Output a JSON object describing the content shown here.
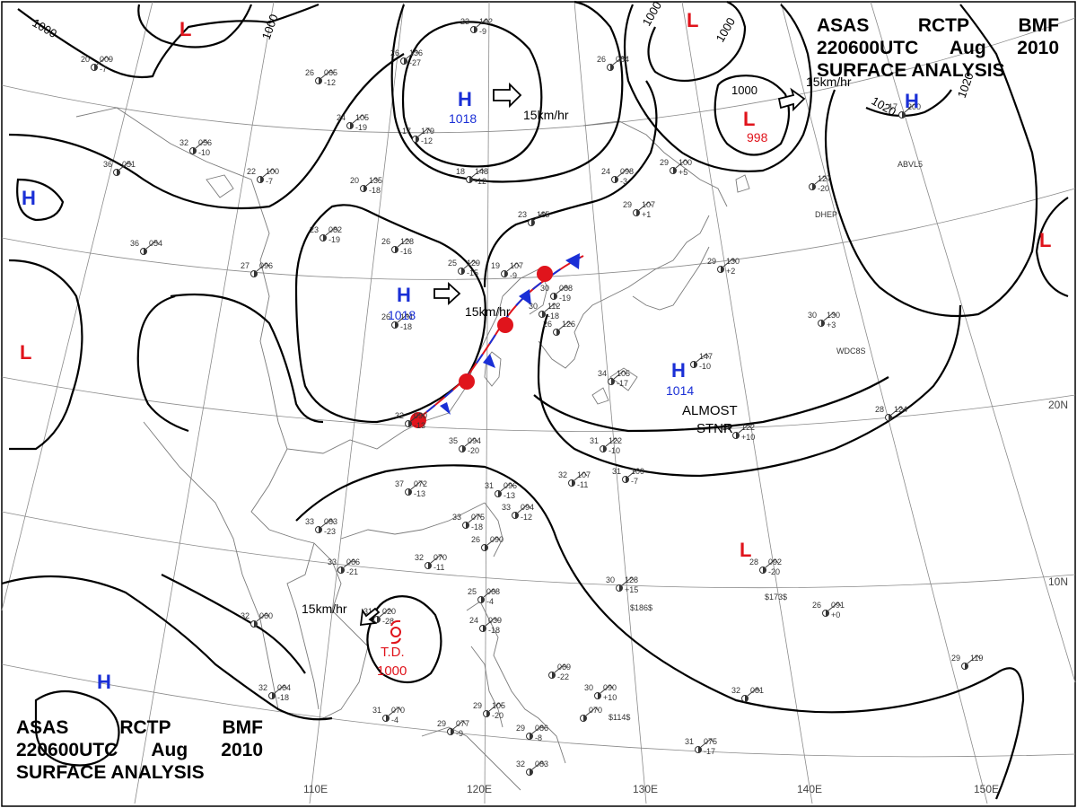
{
  "title": {
    "line1": [
      "ASAS",
      "RCTP",
      "BMF"
    ],
    "line2": [
      "220600UTC",
      "Aug",
      "2010"
    ],
    "line3": "SURFACE ANALYSIS"
  },
  "colors": {
    "high": "#1a2fd6",
    "low": "#e0141c",
    "isobar": "#000000",
    "grid": "#8a8a8a",
    "coast": "#7a7a7a"
  },
  "longitude_labels": [
    "110E",
    "120E",
    "130E",
    "140E",
    "150E"
  ],
  "latitude_labels": [
    "20N",
    "10N"
  ],
  "pressure_centers": [
    {
      "type": "H",
      "value": "1018"
    },
    {
      "type": "H",
      "value": "1018"
    },
    {
      "type": "H",
      "value": "1014"
    },
    {
      "type": "H",
      "value": ""
    },
    {
      "type": "H",
      "value": ""
    },
    {
      "type": "H",
      "value": ""
    },
    {
      "type": "L",
      "value": "998"
    },
    {
      "type": "L",
      "value": ""
    },
    {
      "type": "L",
      "value": ""
    },
    {
      "type": "L",
      "value": ""
    },
    {
      "type": "L",
      "value": ""
    },
    {
      "type": "L",
      "value": ""
    }
  ],
  "tropical_depression": {
    "label": "T.D.",
    "value": "1000"
  },
  "movement_labels": [
    "15km/hr",
    "15km/hr",
    "15km/hr",
    "15km/hr"
  ],
  "annotations": {
    "stationary_line1": "ALMOST",
    "stationary_line2": "STNR"
  },
  "isobar_labels": [
    "1000",
    "1000",
    "1000",
    "1000",
    "1000",
    "1020",
    "1020"
  ],
  "station_plots": [
    {
      "temp": "20",
      "pres": "009",
      "extra": "-7"
    },
    {
      "temp": "32",
      "pres": "056",
      "extra": "-10"
    },
    {
      "temp": "36",
      "pres": "051",
      "extra": ""
    },
    {
      "temp": "26",
      "pres": "065",
      "extra": "-12"
    },
    {
      "temp": "24",
      "pres": "105",
      "extra": "-19"
    },
    {
      "temp": "22",
      "pres": "100",
      "extra": "-7"
    },
    {
      "temp": "36",
      "pres": "054",
      "extra": ""
    },
    {
      "temp": "27",
      "pres": "096",
      "extra": ""
    },
    {
      "temp": "23",
      "pres": "082",
      "extra": "-19"
    },
    {
      "temp": "20",
      "pres": "135",
      "extra": "-18"
    },
    {
      "temp": "17",
      "pres": "179",
      "extra": "-12"
    },
    {
      "temp": "23",
      "pres": "162",
      "extra": "-9"
    },
    {
      "temp": "26",
      "pres": "136",
      "extra": "-27"
    },
    {
      "temp": "18",
      "pres": "148",
      "extra": "-12"
    },
    {
      "temp": "26",
      "pres": "128",
      "extra": "-16"
    },
    {
      "temp": "25",
      "pres": "129",
      "extra": "-15"
    },
    {
      "temp": "19",
      "pres": "107",
      "extra": "-9"
    },
    {
      "temp": "23",
      "pres": "115",
      "extra": ""
    },
    {
      "temp": "26",
      "pres": "131",
      "extra": "-18"
    },
    {
      "temp": "30",
      "pres": "088",
      "extra": "-19"
    },
    {
      "temp": "30",
      "pres": "112",
      "extra": "-18"
    },
    {
      "temp": "26",
      "pres": "126",
      "extra": ""
    },
    {
      "temp": "32",
      "pres": "090",
      "extra": "-13"
    },
    {
      "temp": "35",
      "pres": "094",
      "extra": "-20"
    },
    {
      "temp": "37",
      "pres": "072",
      "extra": "-13"
    },
    {
      "temp": "31",
      "pres": "096",
      "extra": "-13"
    },
    {
      "temp": "33",
      "pres": "094",
      "extra": "-12"
    },
    {
      "temp": "33",
      "pres": "075",
      "extra": "-18"
    },
    {
      "temp": "26",
      "pres": "090",
      "extra": ""
    },
    {
      "temp": "33",
      "pres": "083",
      "extra": "-23"
    },
    {
      "temp": "32",
      "pres": "070",
      "extra": "-11"
    },
    {
      "temp": "33",
      "pres": "066",
      "extra": "-21"
    },
    {
      "temp": "32",
      "pres": "060",
      "extra": ""
    },
    {
      "temp": "31",
      "pres": "020",
      "extra": "-28"
    },
    {
      "temp": "32",
      "pres": "064",
      "extra": "-18"
    },
    {
      "temp": "31",
      "pres": "070",
      "extra": "-4"
    },
    {
      "temp": "29",
      "pres": "077",
      "extra": "-9"
    },
    {
      "temp": "29",
      "pres": "086",
      "extra": "-8"
    },
    {
      "temp": "25",
      "pres": "068",
      "extra": "-4"
    },
    {
      "temp": "24",
      "pres": "039",
      "extra": "-18"
    },
    {
      "temp": "29",
      "pres": "105",
      "extra": "-20"
    },
    {
      "temp": "32",
      "pres": "083",
      "extra": ""
    },
    {
      "temp": "",
      "pres": "069",
      "extra": "-22"
    },
    {
      "temp": "",
      "pres": "070",
      "extra": ""
    },
    {
      "temp": "30",
      "pres": "090",
      "extra": "+10"
    },
    {
      "temp": "30",
      "pres": "128",
      "extra": "+15"
    },
    {
      "temp": "32",
      "pres": "107",
      "extra": "-11"
    },
    {
      "temp": "31",
      "pres": "122",
      "extra": "-10"
    },
    {
      "temp": "31",
      "pres": "109",
      "extra": "-7"
    },
    {
      "temp": "34",
      "pres": "105",
      "extra": "-17"
    },
    {
      "temp": "29",
      "pres": "107",
      "extra": "+1"
    },
    {
      "temp": "24",
      "pres": "098",
      "extra": "-3"
    },
    {
      "temp": "26",
      "pres": "084",
      "extra": ""
    },
    {
      "temp": "29",
      "pres": "100",
      "extra": "+5"
    },
    {
      "temp": "",
      "pres": "147",
      "extra": "-10"
    },
    {
      "temp": "29",
      "pres": "122",
      "extra": "+10"
    },
    {
      "temp": "28",
      "pres": "124",
      "extra": ""
    },
    {
      "temp": "29",
      "pres": "130",
      "extra": "+2"
    },
    {
      "temp": "30",
      "pres": "130",
      "extra": "+3"
    },
    {
      "temp": "",
      "pres": "127",
      "extra": "-20"
    },
    {
      "temp": "17",
      "pres": "200",
      "extra": ""
    },
    {
      "temp": "28",
      "pres": "092",
      "extra": "-20"
    },
    {
      "temp": "26",
      "pres": "091",
      "extra": "+0"
    },
    {
      "temp": "32",
      "pres": "081",
      "extra": ""
    },
    {
      "temp": "31",
      "pres": "075",
      "extra": "-17"
    },
    {
      "temp": "29",
      "pres": "119",
      "extra": ""
    }
  ],
  "station_ids": [
    "DHEP",
    "WDC8S",
    "ABVL5",
    "$173$",
    "$186$",
    "$114$"
  ]
}
